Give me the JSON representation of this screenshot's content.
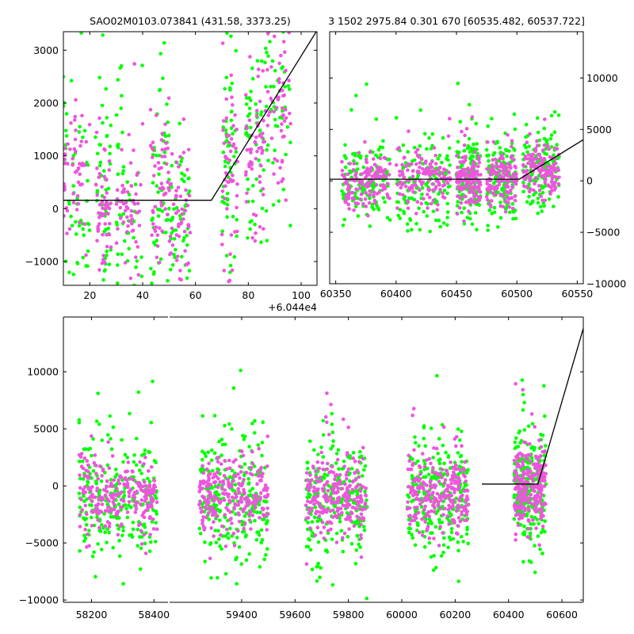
{
  "titles": {
    "left": "SAO02M0103.073841 (431.58, 3373.25)",
    "right": "3 1502 2975.84 0.301 670 [60535.482, 60537.722]"
  },
  "colors": {
    "series_a": "#00ff00",
    "series_b": "#ee55dd",
    "model_line": "#000000"
  },
  "chart_data": [
    {
      "id": "top-left",
      "type": "scatter",
      "xlim": [
        10,
        106
      ],
      "ylim": [
        -1450,
        3350
      ],
      "x_ticks": [
        20,
        40,
        60,
        80,
        100
      ],
      "y_ticks": [
        -1000,
        0,
        1000,
        2000,
        3000
      ],
      "x_offset_label": "+6.044e4",
      "y_axis_side": "left",
      "grid": false,
      "model_line": [
        [
          10,
          160
        ],
        [
          66,
          160
        ],
        [
          106,
          3373
        ]
      ],
      "clusters": [
        {
          "x_range": [
            10,
            20
          ],
          "y_center": 600,
          "y_spread": 900
        },
        {
          "x_range": [
            22,
            28
          ],
          "y_center": 0,
          "y_spread": 700
        },
        {
          "x_range": [
            30,
            40
          ],
          "y_center": 100,
          "y_spread": 800
        },
        {
          "x_range": [
            43,
            50
          ],
          "y_center": 300,
          "y_spread": 800
        },
        {
          "x_range": [
            50,
            58
          ],
          "y_center": -200,
          "y_spread": 700
        },
        {
          "x_range": [
            70,
            76
          ],
          "y_center": 700,
          "y_spread": 1100
        },
        {
          "x_range": [
            79,
            86
          ],
          "y_center": 1100,
          "y_spread": 900
        },
        {
          "x_range": [
            86,
            96
          ],
          "y_center": 2000,
          "y_spread": 800
        }
      ]
    },
    {
      "id": "top-right",
      "type": "scatter",
      "xlim": [
        60345,
        60555
      ],
      "ylim": [
        -10000,
        14500
      ],
      "x_ticks": [
        60350,
        60400,
        60450,
        60500,
        60550
      ],
      "y_ticks": [
        -10000,
        -5000,
        0,
        5000,
        10000
      ],
      "y_axis_side": "right",
      "grid": false,
      "model_line": [
        [
          60345,
          160
        ],
        [
          60502,
          160
        ],
        [
          60555,
          4000
        ]
      ],
      "clusters": [
        {
          "x_range": [
            60355,
            60395
          ],
          "y_center": 0,
          "y_spread": 1500
        },
        {
          "x_range": [
            60400,
            60445
          ],
          "y_center": 0,
          "y_spread": 1500
        },
        {
          "x_range": [
            60450,
            60470
          ],
          "y_center": 0,
          "y_spread": 1500
        },
        {
          "x_range": [
            60475,
            60500
          ],
          "y_center": 0,
          "y_spread": 1500
        },
        {
          "x_range": [
            60505,
            60535
          ],
          "y_center": 1000,
          "y_spread": 1500
        }
      ]
    },
    {
      "id": "bottom",
      "type": "scatter",
      "broken_x_axis": true,
      "segments": [
        {
          "xlim": [
            58110,
            58445
          ],
          "x_ticks": [
            58200,
            58400
          ]
        },
        {
          "xlim": [
            59130,
            60680
          ],
          "x_ticks": [
            59400,
            59600,
            59800,
            60000,
            60200,
            60400,
            60600
          ]
        }
      ],
      "ylim": [
        -10200,
        14800
      ],
      "y_ticks": [
        -10000,
        -5000,
        0,
        5000,
        10000
      ],
      "y_axis_side": "left",
      "grid": false,
      "model_line": [
        [
          60300,
          160
        ],
        [
          60510,
          160
        ],
        [
          60680,
          13800
        ]
      ],
      "clusters": [
        {
          "x_range": [
            58160,
            58410
          ],
          "y_center": -1000,
          "y_spread": 1800
        },
        {
          "x_range": [
            59240,
            59500
          ],
          "y_center": -1000,
          "y_spread": 1800
        },
        {
          "x_range": [
            59640,
            59870
          ],
          "y_center": -1000,
          "y_spread": 1800
        },
        {
          "x_range": [
            60020,
            60250
          ],
          "y_center": -1000,
          "y_spread": 1800
        },
        {
          "x_range": [
            60420,
            60540
          ],
          "y_center": -200,
          "y_spread": 1800
        }
      ]
    }
  ]
}
